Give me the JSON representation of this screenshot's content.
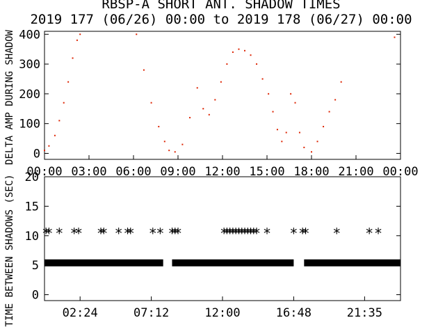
{
  "header": {
    "title": "RBSP-A SHORT ANT. SHADOW TIMES",
    "subtitle": "2019 177 (06/26) 00:00 to 2019 178 (06/27) 00:00"
  },
  "chart_data": [
    {
      "type": "scatter",
      "ylabel": "DELTA AMP DURING SHADOW",
      "xlim": [
        0,
        24
      ],
      "ylim": [
        -20,
        410
      ],
      "yticks": [
        0,
        100,
        200,
        300,
        400
      ],
      "xtick_labels": [
        "00:00",
        "03:00",
        "06:00",
        "09:00",
        "12:00",
        "15:00",
        "18:00",
        "21:00",
        "00:00"
      ],
      "color": "#dd2200",
      "series": [
        {
          "name": "",
          "x": [
            0.0,
            0.3,
            0.7,
            1.0,
            1.3,
            1.6,
            1.9,
            2.2,
            2.4,
            6.2,
            6.7,
            7.2,
            7.7,
            8.1,
            8.4,
            8.8,
            9.3,
            9.8,
            10.3,
            10.7,
            11.1,
            11.5,
            11.9,
            12.3,
            12.7,
            13.1,
            13.5,
            13.9,
            14.3,
            14.7,
            15.1,
            15.4,
            15.7,
            16.0,
            16.3,
            16.6,
            16.9,
            17.2,
            17.5,
            18.0,
            18.4,
            18.8,
            19.2,
            19.6,
            20.0,
            23.6
          ],
          "y": [
            10,
            25,
            60,
            110,
            170,
            240,
            320,
            380,
            400,
            400,
            280,
            170,
            90,
            40,
            10,
            5,
            30,
            120,
            220,
            150,
            130,
            180,
            240,
            300,
            340,
            350,
            345,
            330,
            300,
            250,
            200,
            140,
            80,
            40,
            70,
            200,
            170,
            70,
            20,
            5,
            40,
            90,
            140,
            180,
            240,
            390
          ]
        }
      ]
    },
    {
      "type": "scatter",
      "ylabel": "TIME BETWEEN SHADOWS (SEC)",
      "xlim": [
        0,
        24
      ],
      "ylim": [
        -1,
        20
      ],
      "yticks": [
        0,
        5,
        10,
        15,
        20
      ],
      "xtick_labels": [
        "02:24",
        "07:12",
        "12:00",
        "16:48",
        "21:35"
      ],
      "xtick_pos": [
        2.4,
        7.2,
        12.0,
        16.8,
        21.58
      ],
      "marker": "*",
      "series": [
        {
          "name": "",
          "x_ranges": [
            [
              0.0,
              8.0
            ],
            [
              8.6,
              16.8
            ],
            [
              17.5,
              24.0
            ]
          ],
          "y": 5.4
        },
        {
          "name": "",
          "x": [
            0.1,
            0.3,
            1.0,
            2.0,
            2.3,
            3.8,
            4.0,
            5.0,
            5.6,
            5.8,
            7.3,
            7.8,
            8.6,
            8.8,
            9.0,
            12.1,
            12.3,
            12.5,
            12.7,
            12.9,
            13.1,
            13.3,
            13.5,
            13.7,
            13.9,
            14.1,
            14.3,
            15.0,
            16.8,
            17.4,
            17.6,
            19.7,
            21.9,
            22.5
          ],
          "y": 10.6
        }
      ]
    }
  ]
}
